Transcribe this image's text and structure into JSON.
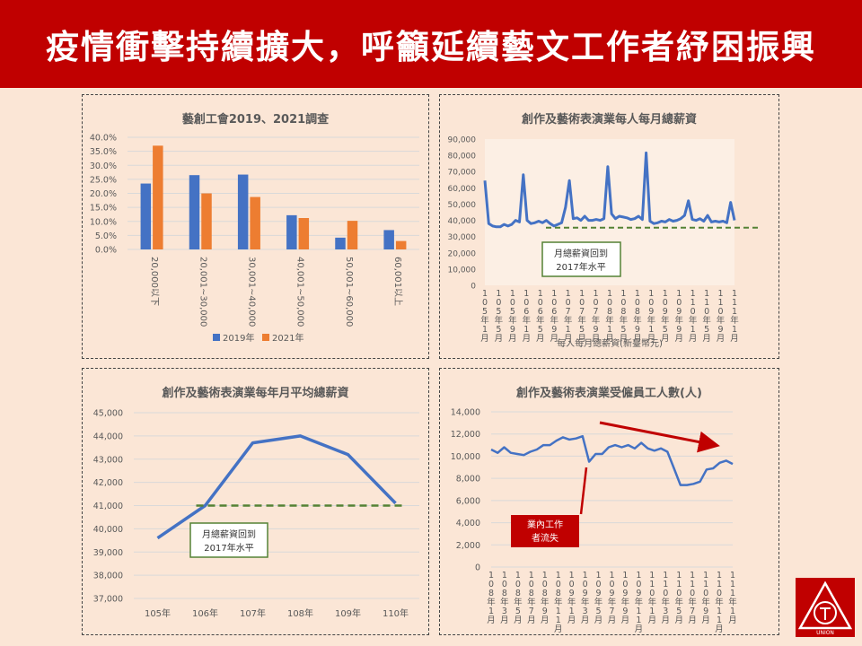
{
  "banner": {
    "title": "疫情衝擊持續擴大，呼籲延續藝文工作者紓困振興"
  },
  "colors": {
    "banner": "#c00000",
    "blue": "#4472c4",
    "orange": "#ed7d31",
    "green_dash": "#548235",
    "red": "#c00000"
  },
  "logo": {
    "icon": "union-logo-icon",
    "text": "UNION"
  },
  "chart_data": [
    {
      "id": "survey",
      "type": "bar",
      "title": "藝創工會2019、2021調查",
      "categories": [
        "20,000以下",
        "20,001~30,000",
        "30,001~40,000",
        "40,001~50,000",
        "50,001~60,000",
        "60,001以上"
      ],
      "series": [
        {
          "name": "2019年",
          "values": [
            23.5,
            26.5,
            26.7,
            12.2,
            4.2,
            6.9
          ]
        },
        {
          "name": "2021年",
          "values": [
            37.0,
            20.0,
            18.7,
            11.2,
            10.2,
            3.0
          ]
        }
      ],
      "ylim": [
        0,
        40
      ],
      "yticks": [
        "0.0%",
        "5.0%",
        "10.0%",
        "15.0%",
        "20.0%",
        "25.0%",
        "30.0%",
        "35.0%",
        "40.0%"
      ],
      "legend": "bottom"
    },
    {
      "id": "monthly_salary",
      "type": "line",
      "title": "創作及藝術表演業每人每月總薪資",
      "xlabel": "每人每月總薪資(新臺幣元)",
      "ylim": [
        0,
        90000
      ],
      "yticks": [
        "0",
        "10,000",
        "20,000",
        "30,000",
        "40,000",
        "50,000",
        "60,000",
        "70,000",
        "80,000",
        "90,000"
      ],
      "xticks": [
        "105年1月",
        "105年5月",
        "105年9月",
        "106年1月",
        "106年5月",
        "106年9月",
        "107年1月",
        "107年5月",
        "107年9月",
        "108年1月",
        "108年5月",
        "108年9月",
        "109年1月",
        "109年5月",
        "109年9月",
        "110年1月",
        "110年5月",
        "110年9月",
        "111年1月"
      ],
      "values": [
        64500,
        38000,
        36500,
        36000,
        36000,
        37500,
        36500,
        37500,
        40000,
        39000,
        68000,
        40000,
        38000,
        38500,
        39500,
        38500,
        40000,
        38000,
        36500,
        37500,
        38500,
        48000,
        64500,
        41000,
        41500,
        40000,
        42500,
        40000,
        40000,
        40500,
        40000,
        41000,
        73000,
        44000,
        41000,
        42500,
        42000,
        41500,
        40500,
        41000,
        42500,
        40500,
        81500,
        39500,
        38000,
        38500,
        39500,
        39000,
        40500,
        39500,
        40000,
        41000,
        43000,
        52000,
        40500,
        40000,
        41000,
        39500,
        43000,
        39000,
        39500,
        39000,
        39500,
        38500,
        51000,
        40000
      ],
      "reference": {
        "value": 35500,
        "label_line1": "月總薪資回到",
        "label_line2": "2017年水平"
      }
    },
    {
      "id": "annual_avg",
      "type": "line",
      "title": "創作及藝術表演業每年月平均總薪資",
      "categories": [
        "105年",
        "106年",
        "107年",
        "108年",
        "109年",
        "110年"
      ],
      "values": [
        39600,
        41000,
        43700,
        44000,
        43200,
        41100
      ],
      "ylim": [
        37000,
        45000
      ],
      "yticks": [
        "37,000",
        "38,000",
        "39,000",
        "40,000",
        "41,000",
        "42,000",
        "43,000",
        "44,000",
        "45,000"
      ],
      "reference": {
        "value": 41000,
        "label_line1": "月總薪資回到",
        "label_line2": "2017年水平"
      }
    },
    {
      "id": "employees",
      "type": "line",
      "title": "創作及藝術表演業受僱員工人數(人)",
      "ylim": [
        0,
        14000
      ],
      "yticks": [
        "0",
        "2,000",
        "4,000",
        "6,000",
        "8,000",
        "10,000",
        "12,000",
        "14,000"
      ],
      "xticks": [
        "108年1月",
        "108年3月",
        "108年5月",
        "108年7月",
        "108年9月",
        "108年11月",
        "109年1月",
        "109年3月",
        "109年5月",
        "109年7月",
        "109年9月",
        "109年11月",
        "110年1月",
        "110年3月",
        "110年5月",
        "110年7月",
        "110年9月",
        "110年11月",
        "111年1月"
      ],
      "values": [
        10600,
        10300,
        10800,
        10300,
        10200,
        10100,
        10400,
        10600,
        11000,
        11000,
        11400,
        11700,
        11500,
        11600,
        11800,
        9500,
        10200,
        10200,
        10800,
        11000,
        10800,
        11000,
        10700,
        11200,
        10700,
        10500,
        10700,
        10400,
        8900,
        7400,
        7400,
        7500,
        7700,
        8800,
        8900,
        9400,
        9600,
        9300
      ],
      "annotation": {
        "label_line1": "業內工作",
        "label_line2": "者流失"
      }
    }
  ]
}
